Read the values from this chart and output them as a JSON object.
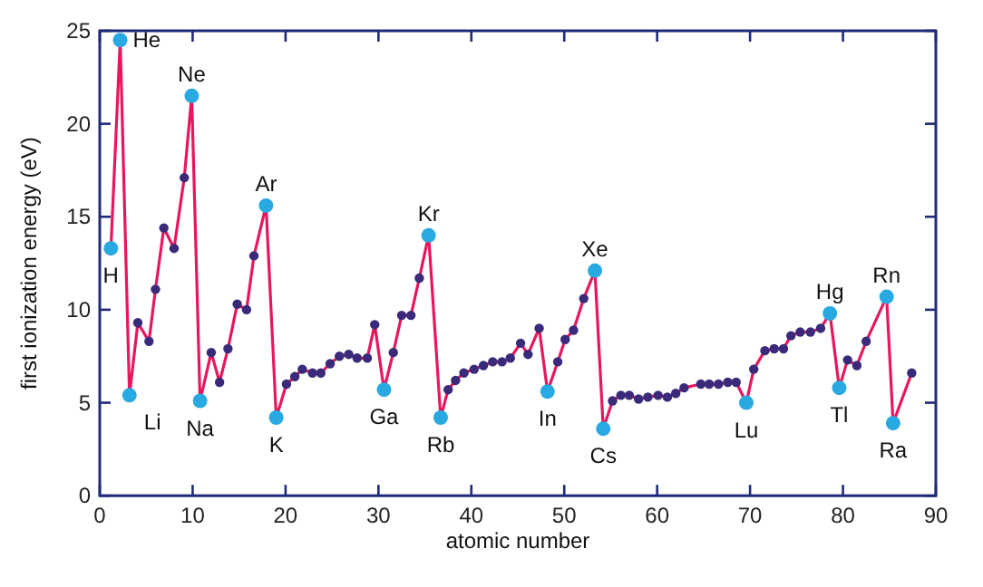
{
  "chart_data": {
    "type": "line",
    "xlabel": "atomic number",
    "ylabel": "first ionization energy (eV)",
    "xlim": [
      0,
      90
    ],
    "xticks": [
      0,
      10,
      20,
      30,
      40,
      50,
      60,
      70,
      80,
      90
    ],
    "ylim": [
      0,
      25
    ],
    "yticks": [
      0,
      5,
      10,
      15,
      20,
      25
    ],
    "grid": false,
    "x": [
      1.2,
      2.2,
      3.2,
      4.1,
      5.3,
      6.0,
      6.9,
      8.0,
      9.1,
      9.9,
      10.8,
      12.0,
      12.9,
      13.8,
      14.8,
      15.8,
      16.6,
      17.9,
      19.0,
      20.1,
      21.0,
      21.8,
      22.9,
      23.8,
      24.8,
      25.8,
      26.8,
      27.7,
      28.8,
      29.6,
      30.6,
      31.6,
      32.5,
      33.5,
      34.4,
      35.4,
      36.7,
      37.5,
      38.3,
      39.2,
      40.3,
      41.3,
      42.3,
      43.3,
      44.2,
      45.3,
      46.1,
      47.3,
      48.2,
      49.3,
      50.1,
      51.0,
      52.1,
      53.3,
      54.2,
      55.2,
      56.1,
      57.0,
      58.0,
      59.0,
      60.1,
      61.1,
      62.0,
      62.9,
      64.7,
      65.6,
      66.6,
      67.6,
      68.5,
      69.6,
      70.4,
      71.6,
      72.6,
      73.6,
      74.4,
      75.4,
      76.5,
      77.6,
      78.6,
      79.6,
      80.5,
      81.5,
      82.5,
      84.7,
      85.4,
      87.4
    ],
    "series": [
      {
        "color": "#e8175d",
        "values": [
          13.3,
          24.5,
          5.4,
          9.3,
          8.3,
          11.1,
          14.4,
          13.3,
          17.1,
          21.5,
          5.1,
          7.7,
          6.1,
          7.9,
          10.3,
          10.0,
          12.9,
          15.6,
          4.2,
          6.0,
          6.4,
          6.8,
          6.6,
          6.6,
          7.1,
          7.5,
          7.6,
          7.4,
          7.4,
          9.2,
          5.7,
          7.7,
          9.7,
          9.7,
          11.7,
          14.0,
          4.2,
          5.7,
          6.2,
          6.6,
          6.8,
          7.0,
          7.2,
          7.2,
          7.4,
          8.2,
          7.6,
          9.0,
          5.6,
          7.2,
          8.4,
          8.9,
          10.6,
          12.1,
          3.6,
          5.1,
          5.4,
          5.4,
          5.2,
          5.3,
          5.4,
          5.3,
          5.5,
          5.8,
          6.0,
          6.0,
          6.0,
          6.1,
          6.1,
          5.0,
          6.8,
          7.8,
          7.9,
          7.9,
          8.6,
          8.8,
          8.8,
          9.0,
          9.8,
          5.8,
          7.3,
          7.0,
          8.3,
          10.7,
          3.9,
          6.6
        ]
      },
      {
        "type": "scatter",
        "color": "#3b2a7a",
        "marker": "circle",
        "values": [
          null,
          null,
          null,
          9.3,
          8.3,
          11.1,
          14.4,
          13.3,
          17.1,
          null,
          null,
          7.7,
          6.1,
          7.9,
          10.3,
          10.0,
          12.9,
          null,
          null,
          6.0,
          6.4,
          6.8,
          6.6,
          6.6,
          7.1,
          7.5,
          7.6,
          7.4,
          7.4,
          9.2,
          null,
          7.7,
          9.7,
          9.7,
          11.7,
          null,
          null,
          5.7,
          6.2,
          6.6,
          6.8,
          7.0,
          7.2,
          7.2,
          7.4,
          8.2,
          7.6,
          9.0,
          null,
          7.2,
          8.4,
          8.9,
          10.6,
          null,
          null,
          5.1,
          5.4,
          5.4,
          5.2,
          5.3,
          5.4,
          5.3,
          5.5,
          5.8,
          6.0,
          6.0,
          6.0,
          6.1,
          6.1,
          null,
          6.8,
          7.8,
          7.9,
          7.9,
          8.6,
          8.8,
          8.8,
          9.0,
          null,
          null,
          7.3,
          7.0,
          8.3,
          null,
          null,
          6.6
        ]
      },
      {
        "type": "scatter",
        "color": "#29a9e1",
        "marker": "circle",
        "values": [
          13.3,
          24.5,
          5.4,
          null,
          null,
          null,
          null,
          null,
          null,
          21.5,
          5.1,
          null,
          null,
          null,
          null,
          null,
          null,
          15.6,
          4.2,
          null,
          null,
          null,
          null,
          null,
          null,
          null,
          null,
          null,
          null,
          null,
          5.7,
          null,
          null,
          null,
          null,
          14.0,
          4.2,
          null,
          null,
          null,
          null,
          null,
          null,
          null,
          null,
          null,
          null,
          null,
          5.6,
          null,
          null,
          null,
          null,
          12.1,
          3.6,
          null,
          null,
          null,
          null,
          null,
          null,
          null,
          null,
          null,
          null,
          null,
          null,
          null,
          null,
          5.0,
          null,
          null,
          null,
          null,
          null,
          null,
          null,
          null,
          9.8,
          5.8,
          null,
          null,
          null,
          10.7,
          3.9,
          null
        ]
      }
    ],
    "annotations": [
      {
        "text": "H",
        "x": 1.2,
        "y": 13.3
      },
      {
        "text": "He",
        "x": 2.2,
        "y": 24.5
      },
      {
        "text": "Li",
        "x": 3.2,
        "y": 5.4
      },
      {
        "text": "Ne",
        "x": 9.9,
        "y": 21.5
      },
      {
        "text": "Na",
        "x": 10.8,
        "y": 5.1
      },
      {
        "text": "Ar",
        "x": 17.9,
        "y": 15.6
      },
      {
        "text": "K",
        "x": 19.0,
        "y": 4.2
      },
      {
        "text": "Ga",
        "x": 30.6,
        "y": 5.7
      },
      {
        "text": "Kr",
        "x": 35.4,
        "y": 14.0
      },
      {
        "text": "Rb",
        "x": 36.7,
        "y": 4.2
      },
      {
        "text": "In",
        "x": 48.2,
        "y": 5.6
      },
      {
        "text": "Xe",
        "x": 53.3,
        "y": 12.1
      },
      {
        "text": "Cs",
        "x": 54.2,
        "y": 3.6
      },
      {
        "text": "Lu",
        "x": 69.6,
        "y": 5.0
      },
      {
        "text": "Hg",
        "x": 78.6,
        "y": 9.8
      },
      {
        "text": "Tl",
        "x": 79.6,
        "y": 5.8
      },
      {
        "text": "Rn",
        "x": 84.7,
        "y": 10.7
      },
      {
        "text": "Ra",
        "x": 85.4,
        "y": 3.9
      }
    ]
  }
}
